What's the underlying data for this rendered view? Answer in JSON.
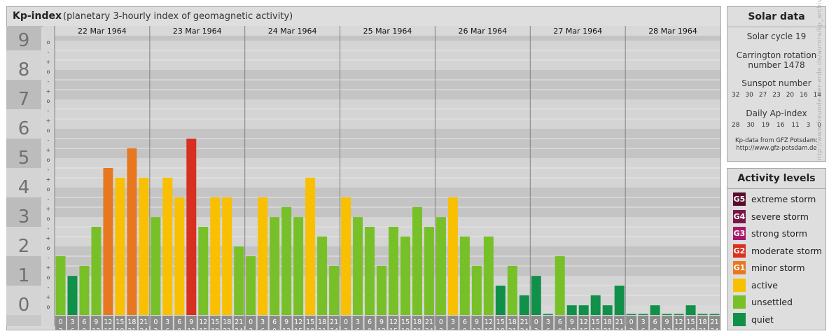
{
  "header": {
    "title": "Kp-index",
    "subtitle": "(planetary 3-hourly index of geomagnetic activity)"
  },
  "solar": {
    "title": "Solar data",
    "cycle": "Solar cycle 19",
    "rotation_line1": "Carrington rotation",
    "rotation_line2": "number 1478",
    "sunspot_title": "Sunspot number",
    "sunspot_values": [
      "32",
      "30",
      "27",
      "23",
      "20",
      "16",
      "14"
    ],
    "ap_title": "Daily Ap-index",
    "ap_values": [
      "28",
      "30",
      "19",
      "16",
      "11",
      "3",
      "0"
    ],
    "credit_line1": "Kp-data from GFZ Potsdam:",
    "credit_line2": "http://www.gfz-potsdam.de"
  },
  "activity": {
    "title": "Activity levels",
    "levels": [
      {
        "code": "G5",
        "label": "extreme storm",
        "color": "#5a0a2c"
      },
      {
        "code": "G4",
        "label": "severe storm",
        "color": "#7a1646"
      },
      {
        "code": "G3",
        "label": "strong storm",
        "color": "#a8186a"
      },
      {
        "code": "G2",
        "label": "moderate storm",
        "color": "#d83020"
      },
      {
        "code": "G1",
        "label": "minor storm",
        "color": "#e87820"
      },
      {
        "code": "",
        "label": "active",
        "color": "#f8c000"
      },
      {
        "code": "",
        "label": "unsettled",
        "color": "#78c028"
      },
      {
        "code": "",
        "label": "quiet",
        "color": "#109048"
      }
    ]
  },
  "watermark": "http://www.freunde-der-erde.de/aurora/kp_archive.php",
  "chart_data": {
    "type": "bar",
    "title": "Kp-index",
    "ylim": [
      0,
      9
    ],
    "y_ticks": [
      "0",
      "1",
      "2",
      "3",
      "4",
      "5",
      "6",
      "7",
      "8",
      "9"
    ],
    "minor_tick_labels": [
      "o",
      "+",
      "-"
    ],
    "days": [
      "22 Mar 1964",
      "23 Mar 1964",
      "24 Mar 1964",
      "25 Mar 1964",
      "26 Mar 1964",
      "27 Mar 1964",
      "28 Mar 1964"
    ],
    "interval_start": [
      "0",
      "3",
      "6",
      "9",
      "12",
      "15",
      "18",
      "21"
    ],
    "interval_end": [
      "3",
      "6",
      "9",
      "12",
      "15",
      "18",
      "21",
      "24"
    ],
    "series": [
      {
        "values": [
          2.0,
          1.33,
          1.67,
          3.0,
          5.0,
          4.67,
          5.67,
          4.67,
          3.33,
          4.67,
          4.0,
          6.0,
          3.0,
          4.0,
          4.0,
          2.33,
          2.0,
          4.0,
          3.33,
          3.67,
          3.33,
          4.67,
          2.67,
          1.67,
          4.0,
          3.33,
          3.0,
          1.67,
          3.0,
          2.67,
          3.67,
          3.0,
          3.33,
          4.0,
          2.67,
          1.67,
          2.67,
          1.0,
          1.67,
          0.67,
          1.33,
          0.0,
          2.0,
          0.33,
          0.33,
          0.67,
          0.33,
          1.0,
          0.0,
          0.0,
          0.33,
          0.0,
          0.0,
          0.33,
          0.0,
          0.0
        ]
      }
    ],
    "colors": {
      "quiet": "#109048",
      "unsettled": "#78c028",
      "active": "#f8c000",
      "minor_storm": "#e87820",
      "moderate_storm": "#d83020"
    }
  }
}
